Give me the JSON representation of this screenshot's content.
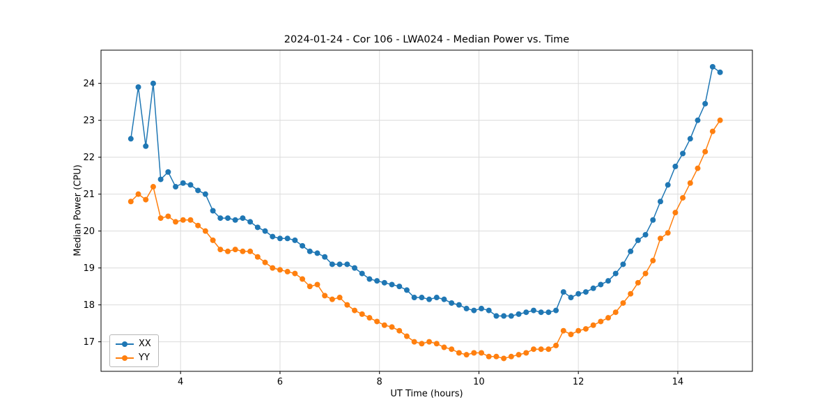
{
  "chart_data": {
    "type": "line",
    "title": "2024-01-24 - Cor 106 - LWA024 - Median Power vs. Time",
    "xlabel": "UT Time (hours)",
    "ylabel": "Median Power (CPU)",
    "xlim": [
      2.4,
      15.5
    ],
    "ylim": [
      16.2,
      24.9
    ],
    "x_ticks": [
      4,
      6,
      8,
      10,
      12,
      14
    ],
    "y_ticks": [
      17,
      18,
      19,
      20,
      21,
      22,
      23,
      24
    ],
    "grid": true,
    "grid_color": "#dcdcdc",
    "axis_color": "#000000",
    "legend_position": "lower left",
    "marker": "circle",
    "x": [
      3.0,
      3.15,
      3.3,
      3.45,
      3.6,
      3.75,
      3.9,
      4.05,
      4.2,
      4.35,
      4.5,
      4.65,
      4.8,
      4.95,
      5.1,
      5.25,
      5.4,
      5.55,
      5.7,
      5.85,
      6.0,
      6.15,
      6.3,
      6.45,
      6.6,
      6.75,
      6.9,
      7.05,
      7.2,
      7.35,
      7.5,
      7.65,
      7.8,
      7.95,
      8.1,
      8.25,
      8.4,
      8.55,
      8.7,
      8.85,
      9.0,
      9.15,
      9.3,
      9.45,
      9.6,
      9.75,
      9.9,
      10.05,
      10.2,
      10.35,
      10.5,
      10.65,
      10.8,
      10.95,
      11.1,
      11.25,
      11.4,
      11.55,
      11.7,
      11.85,
      12.0,
      12.15,
      12.3,
      12.45,
      12.6,
      12.75,
      12.9,
      13.05,
      13.2,
      13.35,
      13.5,
      13.65,
      13.8,
      13.95,
      14.1,
      14.25,
      14.4,
      14.55,
      14.7,
      14.85
    ],
    "series": [
      {
        "name": "XX",
        "color": "#1f77b4",
        "y": [
          22.5,
          23.9,
          22.3,
          24.0,
          21.4,
          21.6,
          21.2,
          21.3,
          21.25,
          21.1,
          21.0,
          20.55,
          20.35,
          20.35,
          20.3,
          20.35,
          20.25,
          20.1,
          20.0,
          19.85,
          19.8,
          19.8,
          19.75,
          19.6,
          19.45,
          19.4,
          19.3,
          19.1,
          19.1,
          19.1,
          19.0,
          18.85,
          18.7,
          18.65,
          18.6,
          18.55,
          18.5,
          18.4,
          18.2,
          18.2,
          18.15,
          18.2,
          18.15,
          18.05,
          18.0,
          17.9,
          17.85,
          17.9,
          17.85,
          17.7,
          17.7,
          17.7,
          17.75,
          17.8,
          17.85,
          17.8,
          17.8,
          17.85,
          18.35,
          18.2,
          18.3,
          18.35,
          18.45,
          18.55,
          18.65,
          18.85,
          19.1,
          19.45,
          19.75,
          19.9,
          20.3,
          20.8,
          21.25,
          21.75,
          22.1,
          22.5,
          23.0,
          23.45,
          24.45,
          24.3
        ]
      },
      {
        "name": "YY",
        "color": "#ff7f0e",
        "y": [
          20.8,
          21.0,
          20.85,
          21.2,
          20.35,
          20.4,
          20.25,
          20.3,
          20.3,
          20.15,
          20.0,
          19.75,
          19.5,
          19.45,
          19.5,
          19.45,
          19.45,
          19.3,
          19.15,
          19.0,
          18.95,
          18.9,
          18.85,
          18.7,
          18.5,
          18.55,
          18.25,
          18.15,
          18.2,
          18.0,
          17.85,
          17.75,
          17.65,
          17.55,
          17.45,
          17.4,
          17.3,
          17.15,
          17.0,
          16.95,
          17.0,
          16.95,
          16.85,
          16.8,
          16.7,
          16.65,
          16.7,
          16.7,
          16.6,
          16.6,
          16.55,
          16.6,
          16.65,
          16.7,
          16.8,
          16.8,
          16.8,
          16.9,
          17.3,
          17.2,
          17.3,
          17.35,
          17.45,
          17.55,
          17.65,
          17.8,
          18.05,
          18.3,
          18.6,
          18.85,
          19.2,
          19.8,
          19.95,
          20.5,
          20.9,
          21.3,
          21.7,
          22.15,
          22.7,
          23.0
        ]
      }
    ]
  }
}
